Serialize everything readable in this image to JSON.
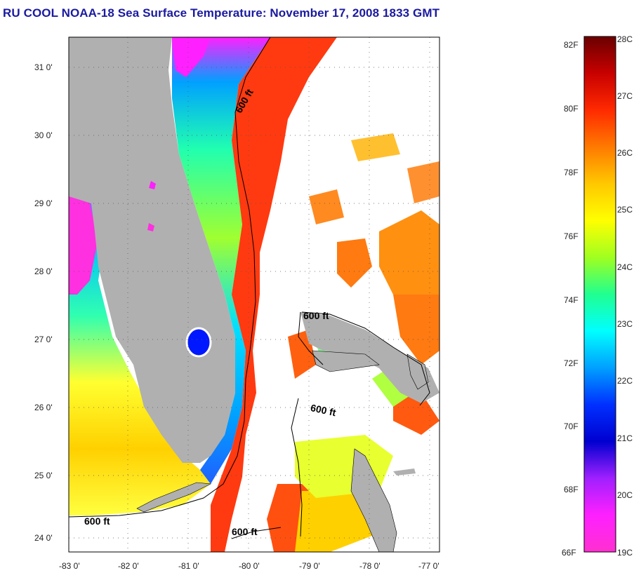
{
  "title": "RU COOL  NOAA-18  Sea Surface Temperature:  November 17, 2008 1833 GMT",
  "map": {
    "lon_labels": [
      "-83 0'",
      "-82 0'",
      "-81 0'",
      "-80 0'",
      "-79 0'",
      "-78 0'",
      "-77 0'"
    ],
    "lat_labels": [
      "31 0'",
      "30 0'",
      "29 0'",
      "28 0'",
      "27 0'",
      "26 0'",
      "25 0'",
      "24 0'"
    ],
    "contour_label": "600 ft",
    "colors": {
      "land": "#b0b0b0",
      "no_data": "#ffffff",
      "gridline": "#555555"
    }
  },
  "colorbar": {
    "fahrenheit_labels": [
      "82F",
      "80F",
      "78F",
      "76F",
      "74F",
      "72F",
      "70F",
      "68F",
      "66F"
    ],
    "celsius_labels": [
      "28C",
      "27C",
      "26C",
      "25C",
      "24C",
      "23C",
      "22C",
      "21C",
      "20C",
      "19C"
    ],
    "stops": [
      "#6a0000",
      "#c80000",
      "#ff2a00",
      "#ff7a00",
      "#ffc800",
      "#ffff00",
      "#a0ff20",
      "#20ff90",
      "#00ffff",
      "#00a0ff",
      "#0030ff",
      "#0000d0",
      "#a020ff",
      "#ff20ff",
      "#ff30d0"
    ]
  }
}
